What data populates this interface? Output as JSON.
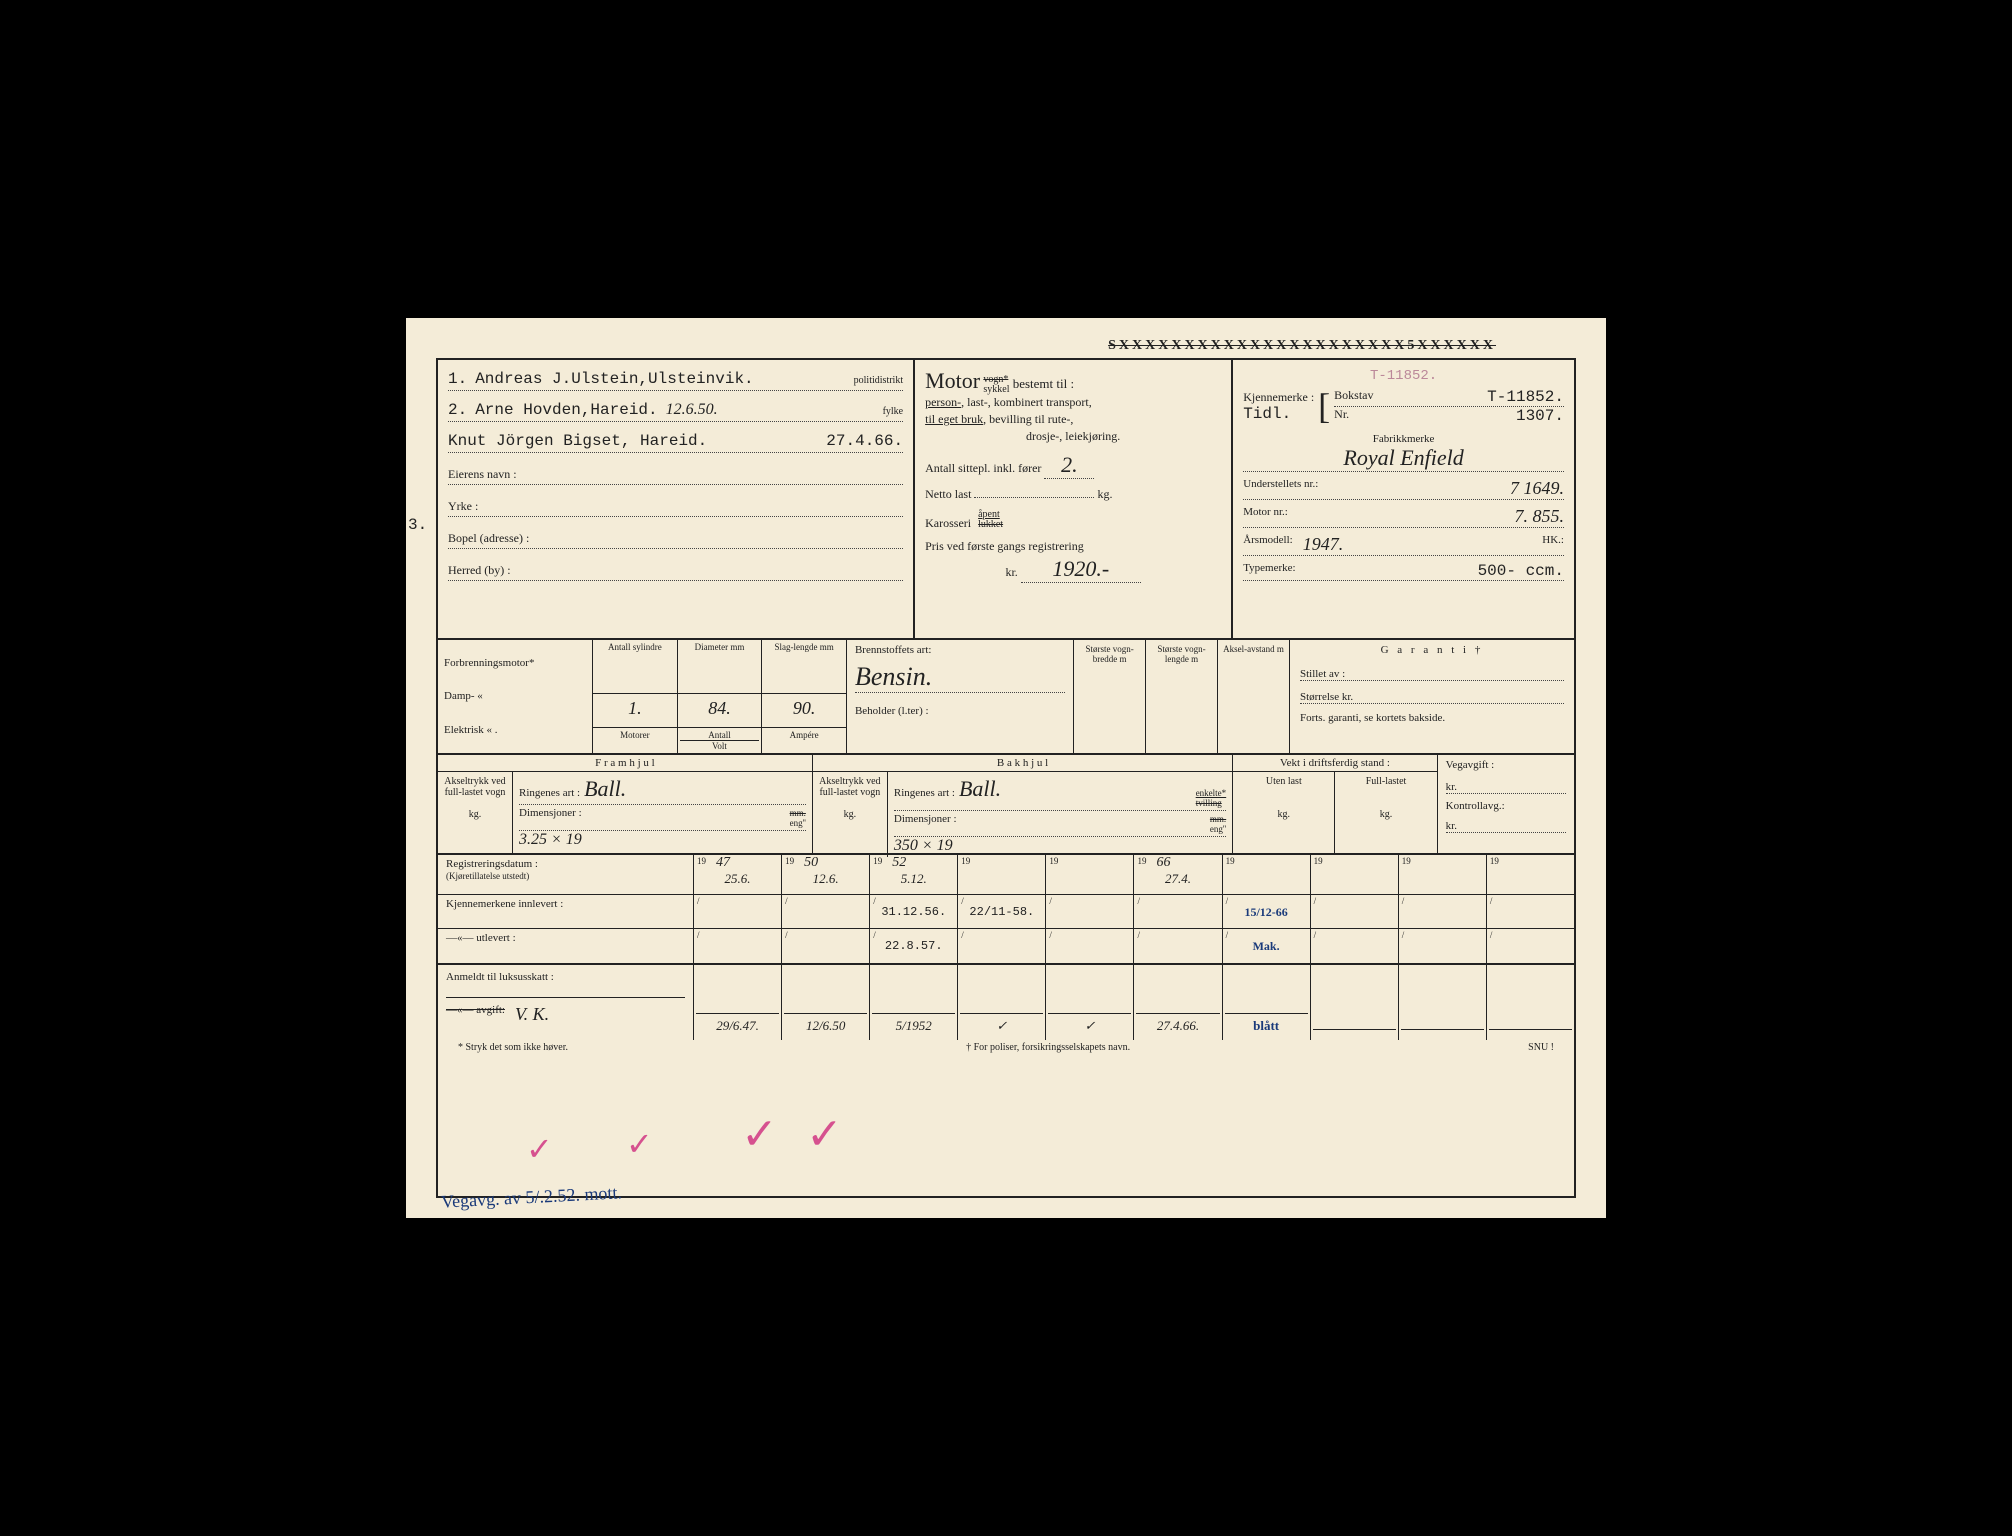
{
  "header_struck": "SXXXXXXXXXXXXXXXXXXXXXX5XXXXXX",
  "owners": {
    "line1_num": "1.",
    "line1_name": "Andreas J.Ulstein,Ulsteinvik.",
    "line1_trail": "politidistrikt",
    "line2_num": "2.",
    "line2_name": "Arne Hovden,Hareid.",
    "line2_date": "12.6.50.",
    "line2_trail": "fylke",
    "line3_num": "3.",
    "line3_name": "Knut Jörgen Bigset, Hareid.",
    "line3_date": "27.4.66.",
    "eier_label": "Eierens navn :",
    "yrke_label": "Yrke :",
    "bopel_label": "Bopel (adresse) :",
    "herred_label": "Herred (by) :"
  },
  "motor": {
    "title": "Motor",
    "vogn_struck": "vogn*",
    "sykkel": "sykkel",
    "bestemt": " bestemt til :",
    "line1a": "person-",
    "line1b": ", last-, kombinert transport,",
    "line2a": "til eget bruk",
    "line2b": ", bevilling til rute-,",
    "line3": "drosje-, leiekjøring.",
    "sitt_label": "Antall sittepl. inkl. fører",
    "sitt_val": "2.",
    "netto_label": "Netto last",
    "netto_unit": "kg.",
    "kaross_label": "Karosseri",
    "kaross_apent": "åpent",
    "kaross_lukket": "lukket",
    "pris_label": "Pris ved første gangs registrering",
    "pris_kr": "kr.",
    "pris_val": "1920.-"
  },
  "reg": {
    "old_t": "T-11852.",
    "kjenne_label": "Kjennemerke :",
    "tidl_label": "Tidl.",
    "bokstav_label": "Bokstav",
    "bokstav_val": "T-11852.",
    "nr_label": "Nr.",
    "nr_val": "1307.",
    "fabrikk_label": "Fabrikkmerke",
    "fabrikk_val": "Royal Enfield",
    "under_label": "Understellets nr.:",
    "under_val": "7 1649.",
    "motor_label": "Motor nr.:",
    "motor_val": "7. 855.",
    "aars_label": "Årsmodell:",
    "aars_val": "1947.",
    "hk_label": "HK.:",
    "type_label": "Typemerke:",
    "type_val": "500- ccm."
  },
  "engine": {
    "forbr": "Forbrenningsmotor*",
    "damp": "Damp-         «",
    "elek": "Elektrisk     « .",
    "h_syl": "Antall sylindre",
    "h_dia": "Diameter mm",
    "h_slag": "Slag-lengde mm",
    "v_syl": "1.",
    "v_dia": "84.",
    "v_slag": "90.",
    "h2_mot": "Motorer",
    "h2_ant": "Antall",
    "h2_volt": "Volt",
    "h2_amp": "Ampére",
    "brenn_label": "Brennstoffets art:",
    "brenn_val": "Bensin.",
    "beh_label": "Beholder (l.ter) :",
    "d_bredde": "Største vogn-bredde m",
    "d_lengde": "Største vogn-lengde m",
    "d_aksel": "Aksel-avstand m",
    "gar_title": "G a r a n t i †",
    "gar_stillet": "Stillet av :",
    "gar_stor": "Størrelse kr.",
    "gar_forts": "Forts. garanti, se kortets bakside."
  },
  "wheels": {
    "fram_title": "F r a m h j u l",
    "bak_title": "B a k h j u l",
    "axle_label": "Akseltrykk ved full-lastet vogn",
    "kg_label": "kg.",
    "ring_label": "Ringenes art :",
    "ring_val_f": "Ball.",
    "dim_label": "Dimensjoner :",
    "dim_val_f": "3.25 × 19",
    "mm_struck": "mm.",
    "eng_label": "eng''",
    "ring_val_b": "Ball.",
    "dim_val_b": "350 × 19",
    "enkelte": "enkelte*",
    "tvilling": "tvilling",
    "vekt_title": "Vekt i driftsferdig stand :",
    "uten": "Uten last",
    "full": "Full-lastet",
    "avg_title": "Vegavgift :",
    "avg_kr": "kr.",
    "kontroll": "Kontrollavg.:"
  },
  "dates": {
    "reg_label": "Registreringsdatum :",
    "reg_sub": "(Kjøretillatelse utstedt)",
    "innlev_label": "Kjennemerkene innlevert :",
    "utlev_label": "—«—         utlevert :",
    "years": [
      "47",
      "50",
      "52",
      "",
      "",
      "66",
      "",
      "",
      "",
      ""
    ],
    "reg_vals": [
      "25.6.",
      "12.6.",
      "5.12.",
      "",
      "",
      "27.4.",
      "",
      "",
      "",
      ""
    ],
    "innlev_vals": [
      "",
      "",
      "31.12.56.",
      "22/11-58.",
      "",
      "",
      "15/12-66",
      "",
      "",
      ""
    ],
    "utlev_vals": [
      "",
      "",
      "22.8.57.",
      "",
      "",
      "",
      "Mak.",
      "",
      "",
      ""
    ]
  },
  "lux": {
    "anm_label": "Anmeldt til luksusskatt :",
    "avg_label": "—«—    avgift:",
    "vk": "V. K.",
    "vals": [
      "29/6.47.",
      "12/6.50",
      "5/1952",
      "✓",
      "✓",
      "27.4.66.",
      "blått",
      "",
      "",
      ""
    ]
  },
  "footer": {
    "stryk": "* Stryk det som ikke høver.",
    "poliser": "† For poliser, forsikringsselskapets navn.",
    "snu": "SNU !"
  },
  "margin_note": "Vegavg. av 5/.2.52. mott.",
  "yr_prefix": "19",
  "slash": "/"
}
